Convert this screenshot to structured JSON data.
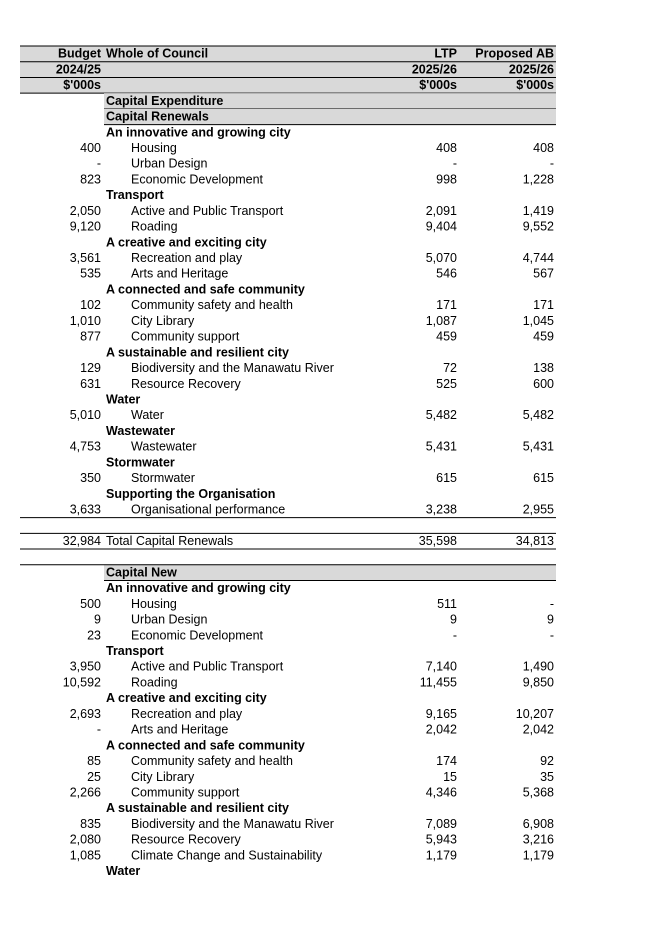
{
  "header": {
    "rows": [
      [
        "Budget",
        "Whole of Council",
        "LTP",
        "Proposed AB"
      ],
      [
        "2024/25",
        "2025/26",
        "2025/26"
      ],
      [
        "$'000s",
        "$'000s",
        "$'000s"
      ]
    ]
  },
  "rows": [
    {
      "heading": "Capital Expenditure"
    },
    {
      "heading": "Capital Renewals"
    },
    {
      "group": "An innovative and growing city"
    },
    {
      "budget": "400",
      "label": "Housing",
      "ltp": "408",
      "proposed": "408"
    },
    {
      "budget": "-",
      "label": "Urban Design",
      "ltp": "-",
      "proposed": "-"
    },
    {
      "budget": "823",
      "label": "Economic Development",
      "ltp": "998",
      "proposed": "1,228"
    },
    {
      "group": "Transport"
    },
    {
      "budget": "2,050",
      "label": "Active and Public Transport",
      "ltp": "2,091",
      "proposed": "1,419"
    },
    {
      "budget": "9,120",
      "label": "Roading",
      "ltp": "9,404",
      "proposed": "9,552"
    },
    {
      "group": "A creative and exciting city"
    },
    {
      "budget": "3,561",
      "label": "Recreation and play",
      "ltp": "5,070",
      "proposed": "4,744"
    },
    {
      "budget": "535",
      "label": "Arts and Heritage",
      "ltp": "546",
      "proposed": "567"
    },
    {
      "group": "A connected and safe community"
    },
    {
      "budget": "102",
      "label": "Community safety and health",
      "ltp": "171",
      "proposed": "171"
    },
    {
      "budget": "1,010",
      "label": "City Library",
      "ltp": "1,087",
      "proposed": "1,045"
    },
    {
      "budget": "877",
      "label": "Community support",
      "ltp": "459",
      "proposed": "459"
    },
    {
      "group": "A sustainable and resilient city"
    },
    {
      "budget": "129",
      "label": "Biodiversity and the Manawatu River",
      "ltp": "72",
      "proposed": "138"
    },
    {
      "budget": "631",
      "label": "Resource Recovery",
      "ltp": "525",
      "proposed": "600"
    },
    {
      "group": "Water"
    },
    {
      "budget": "5,010",
      "label": "Water",
      "ltp": "5,482",
      "proposed": "5,482"
    },
    {
      "group": "Wastewater"
    },
    {
      "budget": "4,753",
      "label": "Wastewater",
      "ltp": "5,431",
      "proposed": "5,431"
    },
    {
      "group": "Stormwater"
    },
    {
      "budget": "350",
      "label": "Stormwater",
      "ltp": "615",
      "proposed": "615"
    },
    {
      "group": "Supporting the Organisation"
    },
    {
      "budget": "3,633",
      "label": "Organisational performance",
      "ltp": "3,238",
      "proposed": "2,955"
    },
    {
      "budget": "32,984",
      "label": "Total Capital Renewals",
      "ltp": "35,598",
      "proposed": "34,813",
      "total": true
    },
    {
      "heading": "Capital New"
    },
    {
      "group": "An innovative and growing city"
    },
    {
      "budget": "500",
      "label": "Housing",
      "ltp": "511",
      "proposed": "-"
    },
    {
      "budget": "9",
      "label": "Urban Design",
      "ltp": "9",
      "proposed": "9"
    },
    {
      "budget": "23",
      "label": "Economic Development",
      "ltp": "-",
      "proposed": "-"
    },
    {
      "group": "Transport"
    },
    {
      "budget": "3,950",
      "label": "Active and Public Transport",
      "ltp": "7,140",
      "proposed": "1,490"
    },
    {
      "budget": "10,592",
      "label": "Roading",
      "ltp": "11,455",
      "proposed": "9,850"
    },
    {
      "group": "A creative and exciting city"
    },
    {
      "budget": "2,693",
      "label": "Recreation and play",
      "ltp": "9,165",
      "proposed": "10,207"
    },
    {
      "budget": "-",
      "label": "Arts and Heritage",
      "ltp": "2,042",
      "proposed": "2,042"
    },
    {
      "group": "A connected and safe community"
    },
    {
      "budget": "85",
      "label": "Community safety and health",
      "ltp": "174",
      "proposed": "92"
    },
    {
      "budget": "25",
      "label": "City Library",
      "ltp": "15",
      "proposed": "35"
    },
    {
      "budget": "2,266",
      "label": "Community support",
      "ltp": "4,346",
      "proposed": "5,368"
    },
    {
      "group": "A sustainable and resilient city"
    },
    {
      "budget": "835",
      "label": "Biodiversity and the Manawatu River",
      "ltp": "7,089",
      "proposed": "6,908"
    },
    {
      "budget": "2,080",
      "label": "Resource Recovery",
      "ltp": "5,943",
      "proposed": "3,216"
    },
    {
      "budget": "1,085",
      "label": "Climate Change and Sustainability",
      "ltp": "1,179",
      "proposed": "1,179"
    },
    {
      "group": "Water"
    }
  ]
}
